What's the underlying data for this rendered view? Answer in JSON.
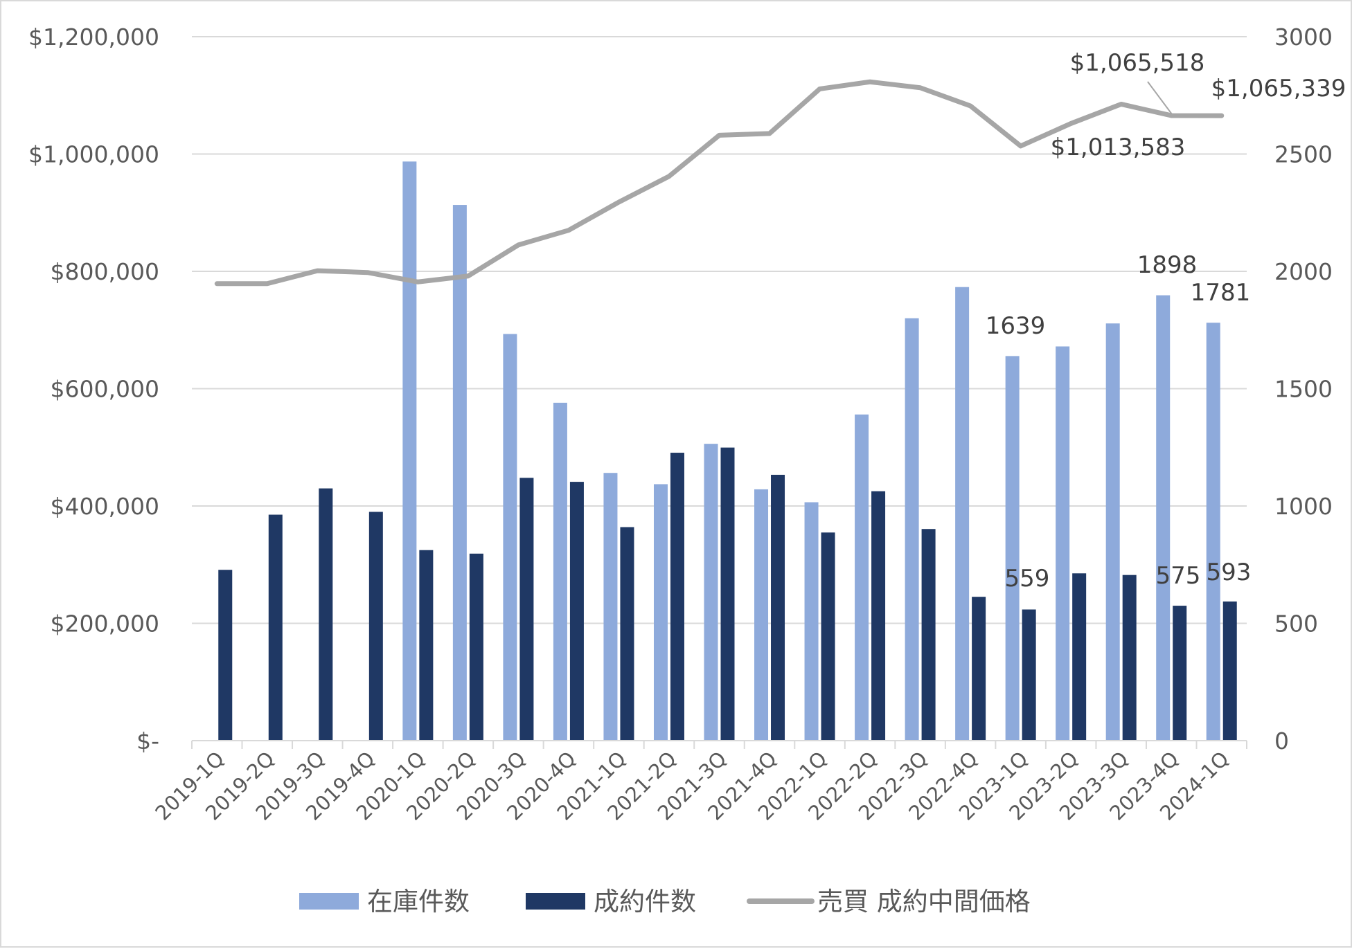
{
  "chart_data": {
    "type": "bar",
    "title": "",
    "categories": [
      "2019-1Q",
      "2019-2Q",
      "2019-3Q",
      "2019-4Q",
      "2020-1Q",
      "2020-2Q",
      "2020-3Q",
      "2020-4Q",
      "2021-1Q",
      "2021-2Q",
      "2021-3Q",
      "2021-4Q",
      "2022-1Q",
      "2022-2Q",
      "2022-3Q",
      "2022-4Q",
      "2023-1Q",
      "2023-2Q",
      "2023-3Q",
      "2023-4Q",
      "2024-1Q"
    ],
    "y_left": {
      "ylim": [
        0,
        1200000
      ],
      "ticks": [
        0,
        200000,
        400000,
        600000,
        800000,
        1000000,
        1200000
      ],
      "tick_labels": [
        "$-",
        "$200,000",
        "$400,000",
        "$600,000",
        "$800,000",
        "$1,000,000",
        "$1,200,000"
      ]
    },
    "y_right": {
      "ylim": [
        0,
        3000
      ],
      "ticks": [
        0,
        500,
        1000,
        1500,
        2000,
        2500,
        3000
      ],
      "tick_labels": [
        "0",
        "500",
        "1000",
        "1500",
        "2000",
        "2500",
        "3000"
      ]
    },
    "grid": true,
    "legend_position": "bottom",
    "series": [
      {
        "name": "在庫件数",
        "type": "bar",
        "axis": "right",
        "color": "#8eaadb",
        "values": [
          null,
          null,
          null,
          null,
          2468,
          2283,
          1733,
          1440,
          1141,
          1093,
          1265,
          1071,
          1016,
          1390,
          1800,
          1933,
          1639,
          1680,
          1778,
          1898,
          1781
        ]
      },
      {
        "name": "成約件数",
        "type": "bar",
        "axis": "right",
        "color": "#1f3864",
        "values": [
          728,
          963,
          1075,
          975,
          812,
          797,
          1120,
          1103,
          910,
          1227,
          1249,
          1133,
          887,
          1063,
          902,
          613,
          559,
          713,
          706,
          575,
          593
        ]
      },
      {
        "name": "売買 成約中間価格",
        "type": "line",
        "axis": "left",
        "color": "#a6a6a6",
        "values": [
          779000,
          779000,
          801000,
          798000,
          782000,
          792000,
          845000,
          870000,
          918000,
          962000,
          1032000,
          1035000,
          1111000,
          1123000,
          1113000,
          1082000,
          1013583,
          1052000,
          1085000,
          1065518,
          1065339
        ]
      }
    ],
    "annotations": {
      "bar_labels": [
        {
          "series": 0,
          "index": 16,
          "text": "1639"
        },
        {
          "series": 0,
          "index": 19,
          "text": "1898"
        },
        {
          "series": 0,
          "index": 20,
          "text": "1781"
        },
        {
          "series": 1,
          "index": 16,
          "text": "559"
        },
        {
          "series": 1,
          "index": 19,
          "text": "575"
        },
        {
          "series": 1,
          "index": 20,
          "text": "593"
        }
      ],
      "line_labels": [
        {
          "index": 16,
          "text": "$1,013,583"
        },
        {
          "index": 19,
          "text": "$1,065,518"
        },
        {
          "index": 20,
          "text": "$1,065,339"
        }
      ]
    }
  }
}
